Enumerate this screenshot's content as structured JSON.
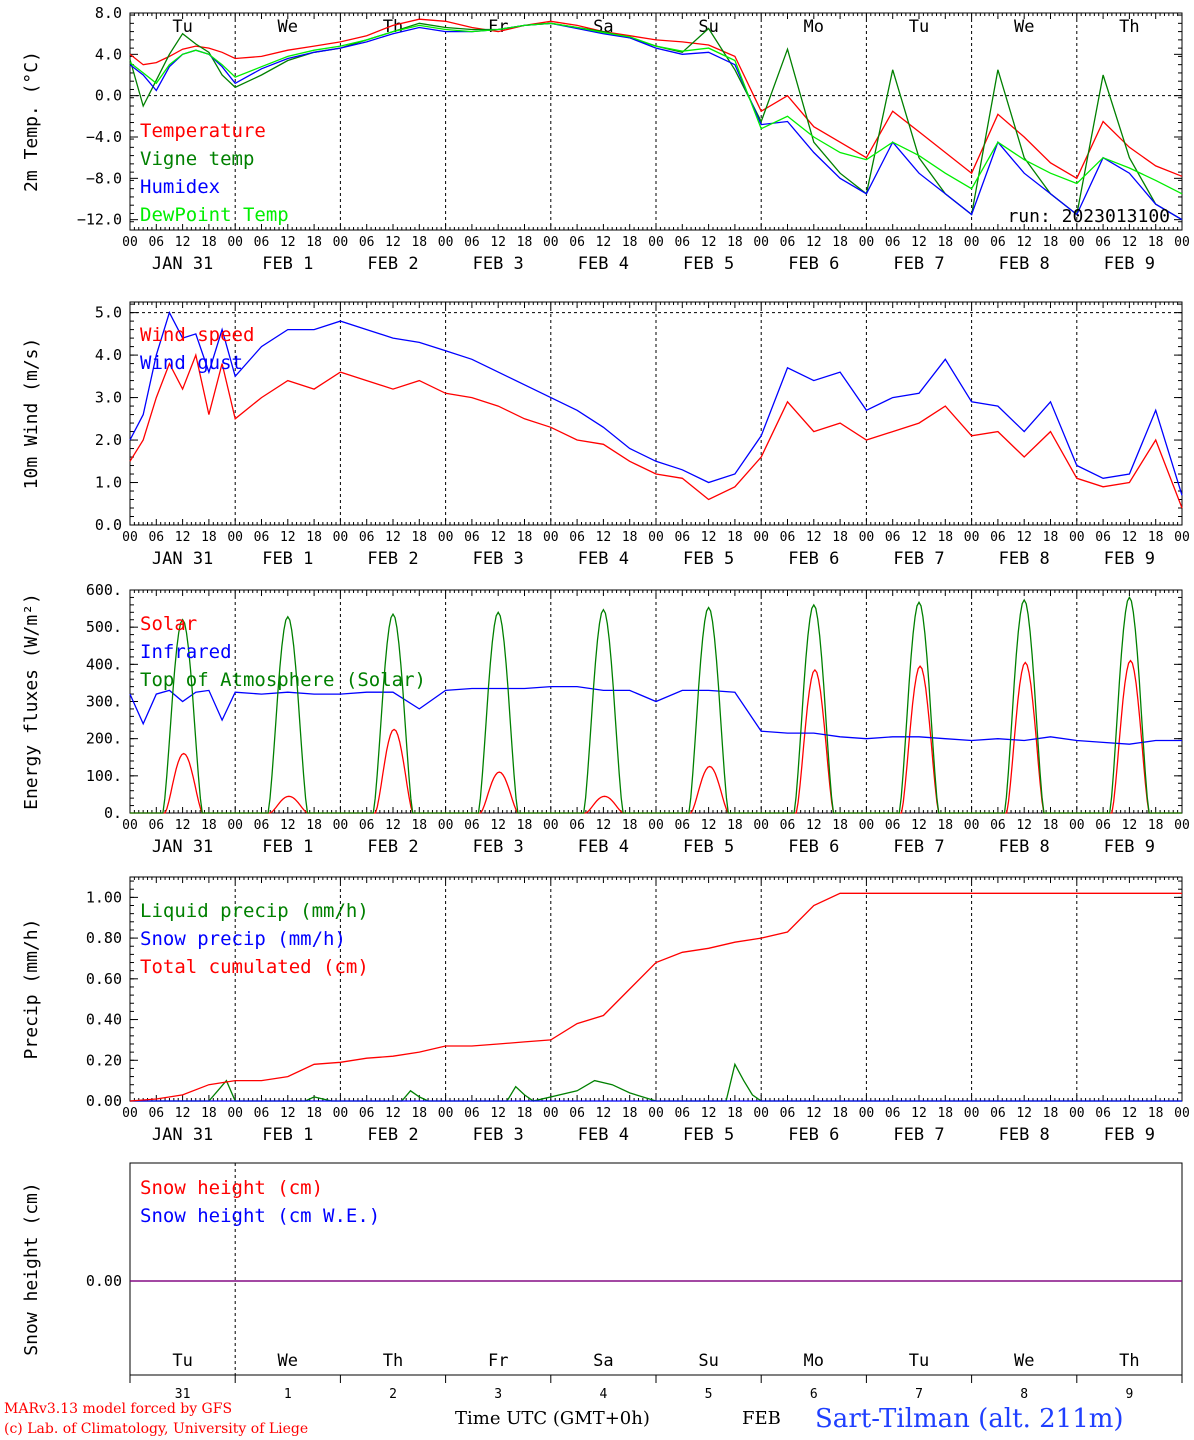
{
  "colors": {
    "red": "#ff0000",
    "dark_green": "#008000",
    "blue": "#0000ff",
    "light_green": "#00ee00",
    "purple": "#7f007f",
    "station_blue": "#1f3fff"
  },
  "time_axis": {
    "hours": [
      "00",
      "06",
      "12",
      "18"
    ],
    "dates": [
      "JAN 31",
      "FEB 1",
      "FEB 2",
      "FEB 3",
      "FEB 4",
      "FEB 5",
      "FEB 6",
      "FEB 7",
      "FEB 8",
      "FEB 9"
    ],
    "final_hour": "00",
    "weekdays": [
      "Tu",
      "We",
      "Th",
      "Fr",
      "Sa",
      "Su",
      "Mo",
      "Tu",
      "We",
      "Th"
    ],
    "weekend_indices": [
      4,
      5
    ]
  },
  "bottom_axis": {
    "day_numbers": [
      "31",
      "1",
      "2",
      "3",
      "4",
      "5",
      "6",
      "7",
      "8",
      "9"
    ],
    "month": "FEB",
    "title": "Time UTC (GMT+0h)"
  },
  "footer": {
    "credit_line1": "MARv3.13 model forced by GFS",
    "credit_line2": "(c) Lab. of Climatology, University of Liege",
    "station": "Sart-Tilman (alt. 211m)"
  },
  "chart_data": [
    {
      "id": "temp",
      "type": "line",
      "ylabel": "2m Temp. (°C)",
      "ylim": [
        -13,
        8
      ],
      "yticks": [
        -12,
        -8,
        -4,
        0,
        4,
        8
      ],
      "ytick_labels": [
        "−12.0",
        "−8.0",
        "−4.0",
        "0.0",
        "4.0",
        "8.0"
      ],
      "zero_line": 0,
      "annotation": "run: 2023013100",
      "show_weekdays": true,
      "series": [
        {
          "name": "Temperature",
          "color": "#ff0000",
          "x": [
            0,
            3,
            6,
            9,
            12,
            15,
            18,
            21,
            24,
            30,
            36,
            42,
            48,
            54,
            60,
            66,
            72,
            78,
            84,
            90,
            96,
            102,
            108,
            114,
            120,
            126,
            132,
            138,
            144,
            150,
            156,
            162,
            168,
            174,
            180,
            186,
            192,
            198,
            204,
            210,
            216,
            222,
            228,
            234,
            240
          ],
          "y": [
            4,
            3,
            3.2,
            3.8,
            4.5,
            4.8,
            4.6,
            4.2,
            3.6,
            3.8,
            4.4,
            4.8,
            5.2,
            5.8,
            6.8,
            7.4,
            7.2,
            6.6,
            6.2,
            6.8,
            7.2,
            6.8,
            6.2,
            5.8,
            5.4,
            5.2,
            4.9,
            3.8,
            -1.5,
            0,
            -3,
            -4.5,
            -6,
            -1.5,
            -3.5,
            -5.5,
            -7.5,
            -1.8,
            -4,
            -6.5,
            -8,
            -2.5,
            -5,
            -6.8,
            -7.8
          ]
        },
        {
          "name": "Vigne temp",
          "color": "#008000",
          "x": [
            0,
            3,
            6,
            9,
            12,
            15,
            18,
            21,
            24,
            30,
            36,
            42,
            48,
            54,
            60,
            66,
            72,
            78,
            84,
            90,
            96,
            102,
            108,
            114,
            120,
            126,
            132,
            138,
            144,
            150,
            156,
            162,
            168,
            174,
            180,
            186,
            192,
            198,
            204,
            210,
            216,
            222,
            228,
            234,
            240
          ],
          "y": [
            3.5,
            -1,
            1.5,
            4,
            6,
            5,
            4.2,
            2,
            0.8,
            2,
            3.4,
            4.2,
            4.6,
            5.4,
            6.2,
            7,
            6.6,
            6.4,
            6.4,
            6.8,
            7,
            6.6,
            6.2,
            5.6,
            4.8,
            4.2,
            6.5,
            2.5,
            -2.5,
            4.5,
            -4.5,
            -7.5,
            -9.5,
            2.5,
            -6,
            -9.5,
            -11.5,
            2.5,
            -6,
            -9.5,
            -11.5,
            2,
            -6,
            -10.5,
            -12
          ]
        },
        {
          "name": "Humidex",
          "color": "#0000ff",
          "x": [
            0,
            3,
            6,
            9,
            12,
            15,
            18,
            21,
            24,
            30,
            36,
            42,
            48,
            54,
            60,
            66,
            72,
            78,
            84,
            90,
            96,
            102,
            108,
            114,
            120,
            126,
            132,
            138,
            144,
            150,
            156,
            162,
            168,
            174,
            180,
            186,
            192,
            198,
            204,
            210,
            216,
            222,
            228,
            234,
            240
          ],
          "y": [
            3,
            2,
            0.5,
            2.8,
            4,
            4.4,
            4,
            2.8,
            1.2,
            2.6,
            3.6,
            4.2,
            4.6,
            5.2,
            6,
            6.6,
            6.2,
            6.2,
            6.4,
            6.8,
            7,
            6.5,
            6,
            5.6,
            4.6,
            4,
            4.2,
            3,
            -2.8,
            -2.5,
            -5.5,
            -8,
            -9.5,
            -4.5,
            -7.5,
            -9.5,
            -11.5,
            -4.5,
            -7.5,
            -9.5,
            -11.5,
            -6,
            -7.5,
            -10.5,
            -12
          ]
        },
        {
          "name": "DewPoint Temp",
          "color": "#00ee00",
          "x": [
            0,
            3,
            6,
            9,
            12,
            15,
            18,
            21,
            24,
            30,
            36,
            42,
            48,
            54,
            60,
            66,
            72,
            78,
            84,
            90,
            96,
            102,
            108,
            114,
            120,
            126,
            132,
            138,
            144,
            150,
            156,
            162,
            168,
            174,
            180,
            186,
            192,
            198,
            204,
            210,
            216,
            222,
            228,
            234,
            240
          ],
          "y": [
            3.2,
            2.2,
            1.2,
            3,
            4,
            4.4,
            4,
            3,
            1.8,
            2.8,
            3.8,
            4.4,
            4.8,
            5.4,
            6.2,
            6.8,
            6.4,
            6.2,
            6.4,
            6.8,
            7,
            6.6,
            6.1,
            5.7,
            4.8,
            4.3,
            4.6,
            3.4,
            -3.2,
            -2,
            -4,
            -5.5,
            -6.2,
            -4.5,
            -5.8,
            -7.5,
            -9,
            -4.5,
            -6.2,
            -7.5,
            -8.5,
            -6,
            -7,
            -8.2,
            -9.5
          ]
        }
      ]
    },
    {
      "id": "wind",
      "type": "line",
      "ylabel": "10m Wind (m/s)",
      "ylim": [
        0,
        5.25
      ],
      "yticks": [
        0,
        1,
        2,
        3,
        4,
        5
      ],
      "ytick_labels": [
        "0.0",
        "1.0",
        "2.0",
        "3.0",
        "4.0",
        "5.0"
      ],
      "ref_line": 5,
      "show_weekdays": false,
      "series": [
        {
          "name": "Wind speed",
          "color": "#ff0000",
          "x": [
            0,
            3,
            6,
            9,
            12,
            15,
            18,
            21,
            24,
            30,
            36,
            42,
            48,
            54,
            60,
            66,
            72,
            78,
            84,
            90,
            96,
            102,
            108,
            114,
            120,
            126,
            132,
            138,
            144,
            150,
            156,
            162,
            168,
            174,
            180,
            186,
            192,
            198,
            204,
            210,
            216,
            222,
            228,
            234,
            240
          ],
          "y": [
            1.5,
            2,
            3,
            3.8,
            3.2,
            4,
            2.6,
            3.8,
            2.5,
            3,
            3.4,
            3.2,
            3.6,
            3.4,
            3.2,
            3.4,
            3.1,
            3,
            2.8,
            2.5,
            2.3,
            2,
            1.9,
            1.5,
            1.2,
            1.1,
            0.6,
            0.9,
            1.6,
            2.9,
            2.2,
            2.4,
            2,
            2.2,
            2.4,
            2.8,
            2.1,
            2.2,
            1.6,
            2.2,
            1.1,
            0.9,
            1,
            2,
            0.4
          ]
        },
        {
          "name": "Wind gust",
          "color": "#0000ff",
          "x": [
            0,
            3,
            6,
            9,
            12,
            15,
            18,
            21,
            24,
            30,
            36,
            42,
            48,
            54,
            60,
            66,
            72,
            78,
            84,
            90,
            96,
            102,
            108,
            114,
            120,
            126,
            132,
            138,
            144,
            150,
            156,
            162,
            168,
            174,
            180,
            186,
            192,
            198,
            204,
            210,
            216,
            222,
            228,
            234,
            240
          ],
          "y": [
            2,
            2.6,
            4,
            5,
            4.4,
            4.5,
            3.6,
            4.6,
            3.5,
            4.2,
            4.6,
            4.6,
            4.8,
            4.6,
            4.4,
            4.3,
            4.1,
            3.9,
            3.6,
            3.3,
            3,
            2.7,
            2.3,
            1.8,
            1.5,
            1.3,
            1,
            1.2,
            2.1,
            3.7,
            3.4,
            3.6,
            2.7,
            3,
            3.1,
            3.9,
            2.9,
            2.8,
            2.2,
            2.9,
            1.4,
            1.1,
            1.2,
            2.7,
            0.7
          ]
        }
      ]
    },
    {
      "id": "flux",
      "type": "line",
      "ylabel": "Energy fluxes (W/m²)",
      "ylim": [
        0,
        600
      ],
      "yticks": [
        0,
        100,
        200,
        300,
        400,
        500,
        600
      ],
      "ytick_labels": [
        "0.",
        "100.",
        "200.",
        "300.",
        "400.",
        "500.",
        "600."
      ],
      "show_weekdays": false,
      "series": [
        {
          "name": "Solar",
          "color": "#ff0000",
          "day_peaks": [
            160,
            45,
            225,
            110,
            45,
            125,
            385,
            395,
            405,
            410
          ]
        },
        {
          "name": "Infrared",
          "color": "#0000ff",
          "x": [
            0,
            3,
            6,
            9,
            12,
            15,
            18,
            21,
            24,
            30,
            36,
            42,
            48,
            54,
            60,
            66,
            72,
            78,
            84,
            90,
            96,
            102,
            108,
            114,
            120,
            126,
            132,
            138,
            144,
            150,
            156,
            162,
            168,
            174,
            180,
            186,
            192,
            198,
            204,
            210,
            216,
            222,
            228,
            234,
            240
          ],
          "y": [
            320,
            240,
            320,
            330,
            300,
            325,
            330,
            250,
            325,
            320,
            325,
            320,
            320,
            325,
            325,
            280,
            330,
            335,
            335,
            335,
            340,
            340,
            330,
            330,
            300,
            330,
            330,
            325,
            220,
            215,
            215,
            205,
            200,
            205,
            205,
            200,
            195,
            200,
            195,
            205,
            195,
            190,
            185,
            195,
            195
          ]
        },
        {
          "name": "Top of Atmosphere (Solar)",
          "color": "#008000",
          "day_peaks": [
            520,
            528,
            535,
            540,
            547,
            553,
            560,
            567,
            573,
            580
          ]
        }
      ]
    },
    {
      "id": "precip",
      "type": "line",
      "ylabel": "Precip (mm/h)",
      "ylim": [
        0,
        1.1
      ],
      "yticks": [
        0,
        0.2,
        0.4,
        0.6,
        0.8,
        1.0
      ],
      "ytick_labels": [
        "0.00",
        "0.20",
        "0.40",
        "0.60",
        "0.80",
        "1.00"
      ],
      "show_weekdays": false,
      "series": [
        {
          "name": "Liquid precip (mm/h)",
          "color": "#008000",
          "x": [
            0,
            18,
            20,
            22,
            24,
            40,
            42,
            44,
            46,
            62,
            64,
            66,
            68,
            86,
            88,
            90,
            92,
            102,
            106,
            110,
            114,
            120,
            136,
            138,
            140,
            142,
            144,
            240
          ],
          "y": [
            0,
            0,
            0.05,
            0.1,
            0,
            0,
            0.02,
            0.01,
            0,
            0,
            0.05,
            0.02,
            0,
            0,
            0.07,
            0.03,
            0,
            0.05,
            0.1,
            0.08,
            0.04,
            0,
            0,
            0.18,
            0.1,
            0.03,
            0,
            0
          ]
        },
        {
          "name": "Snow precip (mm/h)",
          "color": "#0000ff",
          "x": [
            0,
            240
          ],
          "y": [
            0,
            0
          ]
        },
        {
          "name": "Total cumulated (cm)",
          "color": "#ff0000",
          "x": [
            0,
            6,
            12,
            18,
            24,
            30,
            36,
            42,
            48,
            54,
            60,
            66,
            72,
            78,
            84,
            90,
            96,
            102,
            108,
            114,
            120,
            126,
            132,
            138,
            144,
            150,
            156,
            162,
            168,
            174,
            180,
            186,
            192,
            198,
            204,
            210,
            216,
            222,
            228,
            234,
            240
          ],
          "y": [
            0,
            0.01,
            0.03,
            0.08,
            0.1,
            0.1,
            0.12,
            0.18,
            0.19,
            0.21,
            0.22,
            0.24,
            0.27,
            0.27,
            0.28,
            0.29,
            0.3,
            0.38,
            0.42,
            0.55,
            0.68,
            0.73,
            0.75,
            0.78,
            0.8,
            0.83,
            0.96,
            1.02,
            1.02,
            1.02,
            1.02,
            1.02,
            1.02,
            1.02,
            1.02,
            1.02,
            1.02,
            1.02,
            1.02,
            1.02,
            1.02
          ]
        }
      ]
    },
    {
      "id": "snow",
      "type": "line",
      "ylabel": "Snow height (cm)",
      "yticks": [
        0
      ],
      "ytick_labels": [
        "0.00"
      ],
      "show_weekdays": true,
      "series": [
        {
          "name": "Snow height (cm)",
          "color": "#ff0000",
          "x": [
            0,
            240
          ],
          "y": [
            0,
            0
          ]
        },
        {
          "name": "Snow height (cm W.E.)",
          "color": "#0000ff",
          "x": [
            0,
            240
          ],
          "y": [
            0,
            0
          ]
        }
      ]
    }
  ]
}
